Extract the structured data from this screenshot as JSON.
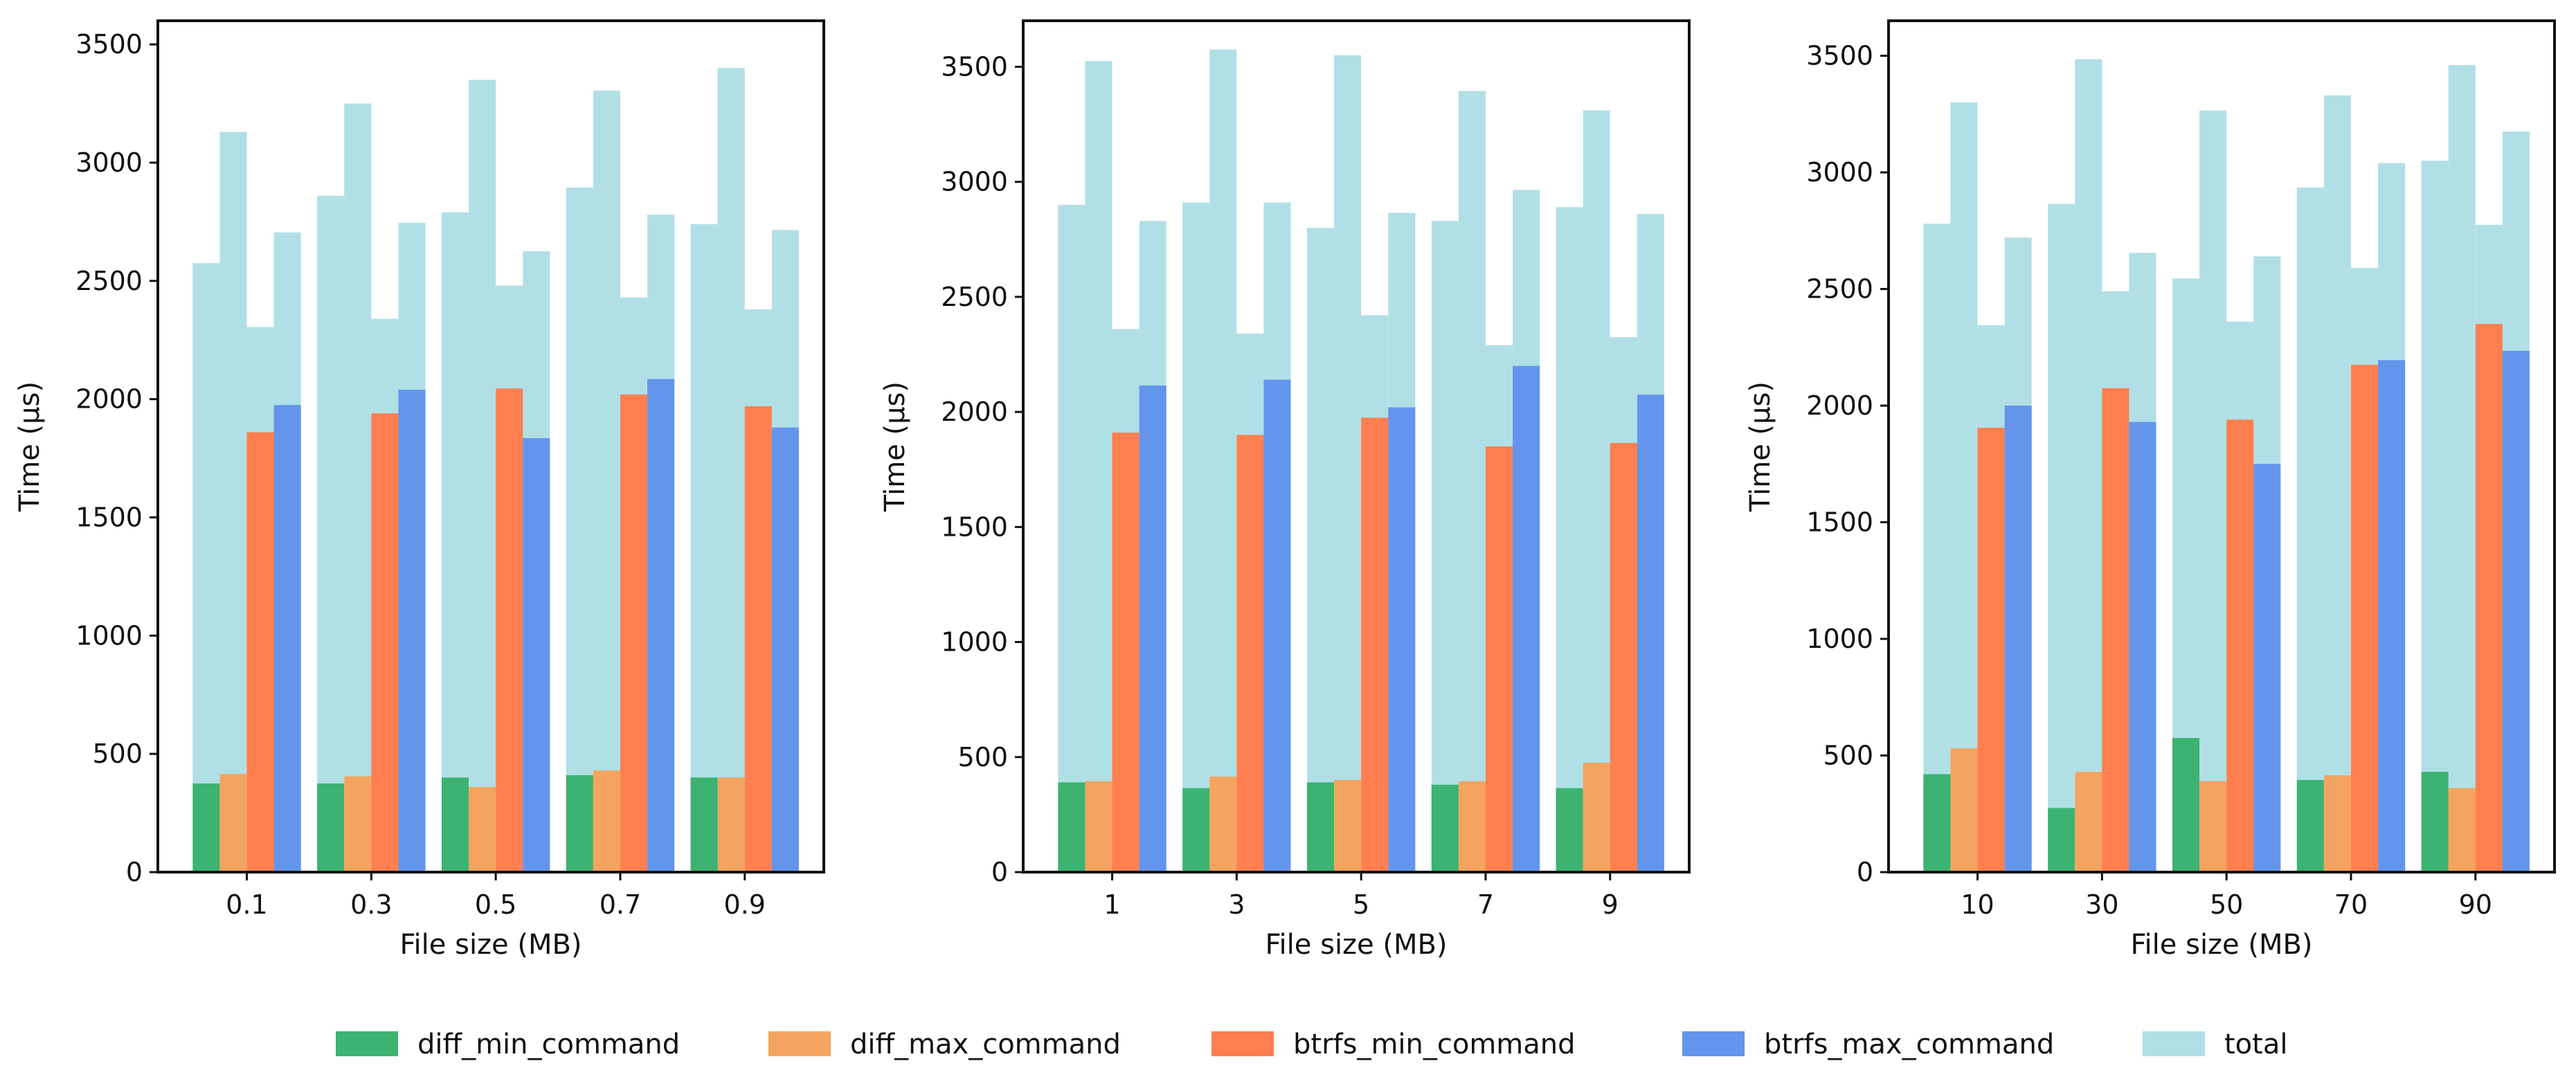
{
  "chart_data": [
    {
      "type": "bar",
      "title": "",
      "xlabel": "File size (MB)",
      "ylabel": "Time (µs)",
      "ylim": [
        0,
        3600
      ],
      "yticks": [
        0,
        500,
        1000,
        1500,
        2000,
        2500,
        3000,
        3500
      ],
      "categories": [
        "0.1",
        "0.3",
        "0.5",
        "0.7",
        "0.9"
      ],
      "series": [
        {
          "name": "diff_min_command",
          "values": [
            375,
            375,
            400,
            410,
            400
          ]
        },
        {
          "name": "diff_max_command",
          "values": [
            415,
            405,
            360,
            430,
            400
          ]
        },
        {
          "name": "btrfs_min_command",
          "values": [
            1860,
            1940,
            2045,
            2020,
            1970
          ]
        },
        {
          "name": "btrfs_max_command",
          "values": [
            1975,
            2040,
            1835,
            2085,
            1880
          ]
        }
      ],
      "total": [
        [
          2575,
          3130,
          2305,
          2705
        ],
        [
          2860,
          3250,
          2340,
          2745
        ],
        [
          2790,
          3350,
          2480,
          2625
        ],
        [
          2895,
          3305,
          2430,
          2780
        ],
        [
          2740,
          3400,
          2380,
          2715
        ]
      ]
    },
    {
      "type": "bar",
      "title": "",
      "xlabel": "File size (MB)",
      "ylabel": "Time (µs)",
      "ylim": [
        0,
        3700
      ],
      "yticks": [
        0,
        500,
        1000,
        1500,
        2000,
        2500,
        3000,
        3500
      ],
      "categories": [
        "1",
        "3",
        "5",
        "7",
        "9"
      ],
      "series": [
        {
          "name": "diff_min_command",
          "values": [
            390,
            365,
            390,
            380,
            365
          ]
        },
        {
          "name": "diff_max_command",
          "values": [
            395,
            415,
            400,
            395,
            475
          ]
        },
        {
          "name": "btrfs_min_command",
          "values": [
            1910,
            1900,
            1975,
            1850,
            1865
          ]
        },
        {
          "name": "btrfs_max_command",
          "values": [
            2115,
            2140,
            2020,
            2200,
            2075
          ]
        }
      ],
      "total": [
        [
          2900,
          3525,
          2360,
          2830
        ],
        [
          2910,
          3575,
          2340,
          2910
        ],
        [
          2800,
          3550,
          2420,
          2865
        ],
        [
          2830,
          3395,
          2290,
          2965
        ],
        [
          2890,
          3310,
          2325,
          2860
        ]
      ]
    },
    {
      "type": "bar",
      "title": "",
      "xlabel": "File size (MB)",
      "ylabel": "Time (µs)",
      "ylim": [
        0,
        3650
      ],
      "yticks": [
        0,
        500,
        1000,
        1500,
        2000,
        2500,
        3000,
        3500
      ],
      "categories": [
        "10",
        "30",
        "50",
        "70",
        "90"
      ],
      "series": [
        {
          "name": "diff_min_command",
          "values": [
            420,
            275,
            575,
            395,
            430
          ]
        },
        {
          "name": "diff_max_command",
          "values": [
            530,
            430,
            390,
            415,
            360
          ]
        },
        {
          "name": "btrfs_min_command",
          "values": [
            1905,
            2075,
            1940,
            2175,
            2350
          ]
        },
        {
          "name": "btrfs_max_command",
          "values": [
            2000,
            1930,
            1750,
            2195,
            2235
          ]
        }
      ],
      "total": [
        [
          2780,
          3300,
          2345,
          2720
        ],
        [
          2865,
          3485,
          2490,
          2655
        ],
        [
          2545,
          3265,
          2360,
          2640
        ],
        [
          2935,
          3330,
          2590,
          3040
        ],
        [
          3050,
          3460,
          2775,
          3175
        ]
      ]
    }
  ],
  "legend": [
    {
      "label": "diff_min_command",
      "color": "#3cb371"
    },
    {
      "label": "diff_max_command",
      "color": "#f4a460"
    },
    {
      "label": "btrfs_min_command",
      "color": "#ff7f50"
    },
    {
      "label": "btrfs_max_command",
      "color": "#6495ed"
    },
    {
      "label": "total",
      "color": "#b0e0e6"
    }
  ]
}
